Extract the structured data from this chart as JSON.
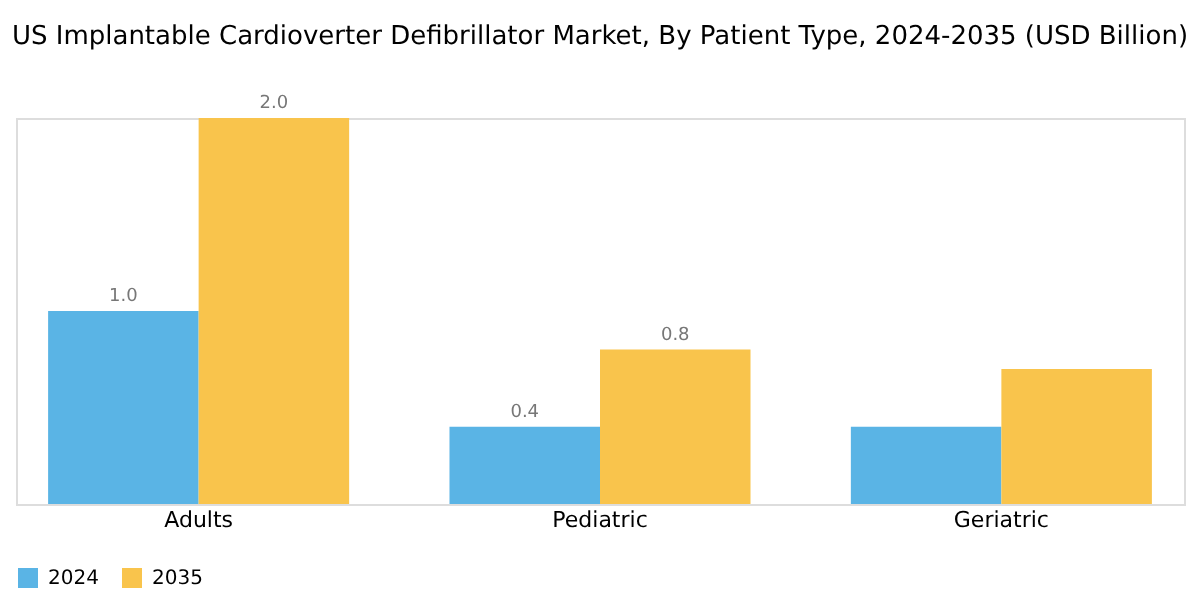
{
  "chart_data": {
    "type": "bar",
    "title": "US Implantable Cardioverter Defibrillator Market, By Patient Type, 2024-2035 (USD Billion)",
    "categories": [
      "Adults",
      "Pediatric",
      "Geriatric"
    ],
    "series": [
      {
        "name": "2024",
        "color": "#5ab4e5",
        "values": [
          1.0,
          0.4,
          0.4
        ],
        "value_labels": [
          "1.0",
          "0.4",
          null
        ]
      },
      {
        "name": "2035",
        "color": "#f9c44c",
        "values": [
          2.0,
          0.8,
          0.7
        ],
        "value_labels": [
          "2.0",
          "0.8",
          null
        ]
      }
    ],
    "tick_labels": "x",
    "grid": false,
    "legend": "bottom"
  }
}
